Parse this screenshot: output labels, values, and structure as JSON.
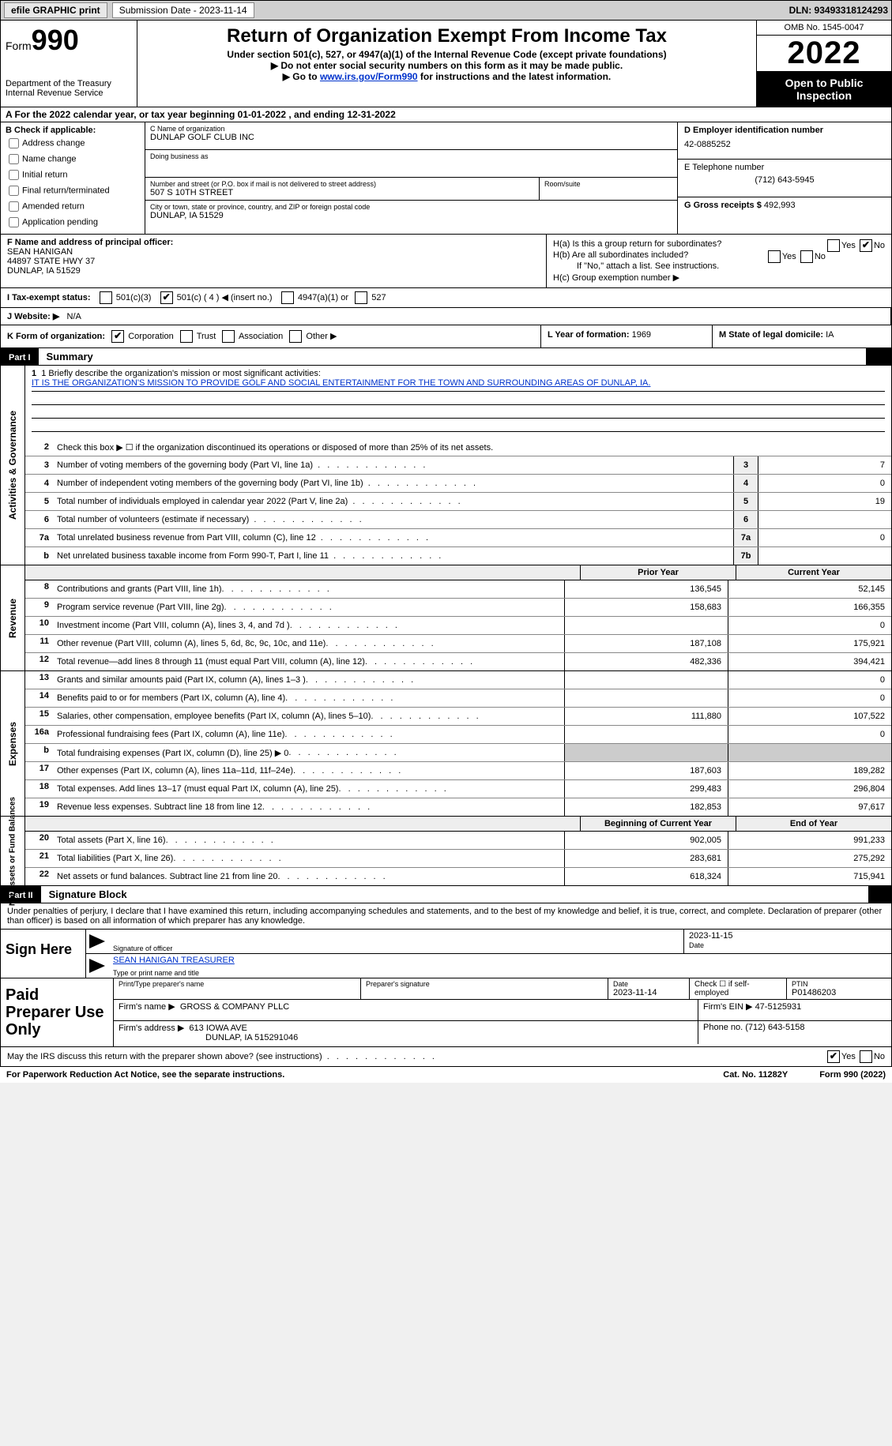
{
  "topbar": {
    "efile_btn": "efile GRAPHIC print",
    "sub_label": "Submission Date - 2023-11-14",
    "dln": "DLN: 93493318124293"
  },
  "header": {
    "form_word": "Form",
    "form_num": "990",
    "dept1": "Department of the Treasury",
    "dept2": "Internal Revenue Service",
    "title": "Return of Organization Exempt From Income Tax",
    "sub1": "Under section 501(c), 527, or 4947(a)(1) of the Internal Revenue Code (except private foundations)",
    "sub2": "▶ Do not enter social security numbers on this form as it may be made public.",
    "sub3_pre": "▶ Go to ",
    "sub3_link": "www.irs.gov/Form990",
    "sub3_post": " for instructions and the latest information.",
    "omb": "OMB No. 1545-0047",
    "year": "2022",
    "open_pub": "Open to Public Inspection"
  },
  "row_a": "A For the 2022 calendar year, or tax year beginning 01-01-2022   , and ending 12-31-2022",
  "box_b": {
    "label": "B Check if applicable:",
    "opts": [
      "Address change",
      "Name change",
      "Initial return",
      "Final return/terminated",
      "Amended return",
      "Application pending"
    ]
  },
  "box_c": {
    "name_lbl": "C Name of organization",
    "name": "DUNLAP GOLF CLUB INC",
    "dba_lbl": "Doing business as",
    "dba": "",
    "addr_lbl": "Number and street (or P.O. box if mail is not delivered to street address)",
    "addr": "507 S 10TH STREET",
    "room_lbl": "Room/suite",
    "city_lbl": "City or town, state or province, country, and ZIP or foreign postal code",
    "city": "DUNLAP, IA  51529"
  },
  "box_d": {
    "lbl": "D Employer identification number",
    "val": "42-0885252"
  },
  "box_e": {
    "lbl": "E Telephone number",
    "val": "(712) 643-5945"
  },
  "box_g": {
    "lbl": "G Gross receipts $",
    "val": "492,993"
  },
  "box_f": {
    "lbl": "F Name and address of principal officer:",
    "l1": "SEAN HANIGAN",
    "l2": "44897 STATE HWY 37",
    "l3": "DUNLAP, IA  51529"
  },
  "box_h": {
    "ha": "H(a)  Is this a group return for subordinates?",
    "hb": "H(b)  Are all subordinates included?",
    "hb_note": "If \"No,\" attach a list. See instructions.",
    "hc": "H(c)  Group exemption number ▶"
  },
  "row_i": {
    "lbl": "I  Tax-exempt status:",
    "opts": [
      "501(c)(3)",
      "501(c) ( 4 ) ◀ (insert no.)",
      "4947(a)(1) or",
      "527"
    ]
  },
  "row_j": {
    "lbl": "J  Website: ▶",
    "val": "N/A"
  },
  "row_k": {
    "lbl": "K Form of organization:",
    "opts": [
      "Corporation",
      "Trust",
      "Association",
      "Other ▶"
    ]
  },
  "row_l": {
    "lbl": "L Year of formation:",
    "val": "1969"
  },
  "row_m": {
    "lbl": "M State of legal domicile:",
    "val": "IA"
  },
  "part1": {
    "num": "Part I",
    "title": "Summary"
  },
  "mission": {
    "q": "1   Briefly describe the organization's mission or most significant activities:",
    "text": "IT IS THE ORGANIZATION'S MISSION TO PROVIDE GOLF AND SOCIAL ENTERTAINMENT FOR THE TOWN AND SURROUNDING AREAS OF DUNLAP, IA."
  },
  "gov_lines": [
    {
      "n": "2",
      "t": "Check this box ▶ ☐ if the organization discontinued its operations or disposed of more than 25% of its net assets.",
      "box": "",
      "v": ""
    },
    {
      "n": "3",
      "t": "Number of voting members of the governing body (Part VI, line 1a)",
      "box": "3",
      "v": "7"
    },
    {
      "n": "4",
      "t": "Number of independent voting members of the governing body (Part VI, line 1b)",
      "box": "4",
      "v": "0"
    },
    {
      "n": "5",
      "t": "Total number of individuals employed in calendar year 2022 (Part V, line 2a)",
      "box": "5",
      "v": "19"
    },
    {
      "n": "6",
      "t": "Total number of volunteers (estimate if necessary)",
      "box": "6",
      "v": ""
    },
    {
      "n": "7a",
      "t": "Total unrelated business revenue from Part VIII, column (C), line 12",
      "box": "7a",
      "v": "0"
    },
    {
      "n": "b",
      "t": "Net unrelated business taxable income from Form 990-T, Part I, line 11",
      "box": "7b",
      "v": ""
    }
  ],
  "col_hdr": {
    "prior": "Prior Year",
    "current": "Current Year"
  },
  "rev_label": "Revenue",
  "rev_lines": [
    {
      "n": "8",
      "t": "Contributions and grants (Part VIII, line 1h)",
      "p": "136,545",
      "c": "52,145"
    },
    {
      "n": "9",
      "t": "Program service revenue (Part VIII, line 2g)",
      "p": "158,683",
      "c": "166,355"
    },
    {
      "n": "10",
      "t": "Investment income (Part VIII, column (A), lines 3, 4, and 7d )",
      "p": "",
      "c": "0"
    },
    {
      "n": "11",
      "t": "Other revenue (Part VIII, column (A), lines 5, 6d, 8c, 9c, 10c, and 11e)",
      "p": "187,108",
      "c": "175,921"
    },
    {
      "n": "12",
      "t": "Total revenue—add lines 8 through 11 (must equal Part VIII, column (A), line 12)",
      "p": "482,336",
      "c": "394,421"
    }
  ],
  "exp_label": "Expenses",
  "exp_lines": [
    {
      "n": "13",
      "t": "Grants and similar amounts paid (Part IX, column (A), lines 1–3 )",
      "p": "",
      "c": "0"
    },
    {
      "n": "14",
      "t": "Benefits paid to or for members (Part IX, column (A), line 4)",
      "p": "",
      "c": "0"
    },
    {
      "n": "15",
      "t": "Salaries, other compensation, employee benefits (Part IX, column (A), lines 5–10)",
      "p": "111,880",
      "c": "107,522"
    },
    {
      "n": "16a",
      "t": "Professional fundraising fees (Part IX, column (A), line 11e)",
      "p": "",
      "c": "0"
    },
    {
      "n": "b",
      "t": "Total fundraising expenses (Part IX, column (D), line 25) ▶ 0",
      "p": "GRAY",
      "c": "GRAY"
    },
    {
      "n": "17",
      "t": "Other expenses (Part IX, column (A), lines 11a–11d, 11f–24e)",
      "p": "187,603",
      "c": "189,282"
    },
    {
      "n": "18",
      "t": "Total expenses. Add lines 13–17 (must equal Part IX, column (A), line 25)",
      "p": "299,483",
      "c": "296,804"
    },
    {
      "n": "19",
      "t": "Revenue less expenses. Subtract line 18 from line 12",
      "p": "182,853",
      "c": "97,617"
    }
  ],
  "na_label": "Net Assets or Fund Balances",
  "na_hdr": {
    "begin": "Beginning of Current Year",
    "end": "End of Year"
  },
  "na_lines": [
    {
      "n": "20",
      "t": "Total assets (Part X, line 16)",
      "p": "902,005",
      "c": "991,233"
    },
    {
      "n": "21",
      "t": "Total liabilities (Part X, line 26)",
      "p": "283,681",
      "c": "275,292"
    },
    {
      "n": "22",
      "t": "Net assets or fund balances. Subtract line 21 from line 20",
      "p": "618,324",
      "c": "715,941"
    }
  ],
  "gov_label": "Activities & Governance",
  "part2": {
    "num": "Part II",
    "title": "Signature Block"
  },
  "penalties": "Under penalties of perjury, I declare that I have examined this return, including accompanying schedules and statements, and to the best of my knowledge and belief, it is true, correct, and complete. Declaration of preparer (other than officer) is based on all information of which preparer has any knowledge.",
  "sign": {
    "left": "Sign Here",
    "sig_lbl": "Signature of officer",
    "date": "2023-11-15",
    "date_lbl": "Date",
    "name": "SEAN HANIGAN  TREASURER",
    "name_lbl": "Type or print name and title"
  },
  "prep": {
    "left": "Paid Preparer Use Only",
    "r1": {
      "c1_lbl": "Print/Type preparer's name",
      "c1": "",
      "c2_lbl": "Preparer's signature",
      "c2": "",
      "c3_lbl": "Date",
      "c3": "2023-11-14",
      "c4_lbl": "Check ☐ if self-employed",
      "c5_lbl": "PTIN",
      "c5": "P01486203"
    },
    "r2": {
      "lbl": "Firm's name    ▶",
      "val": "GROSS & COMPANY PLLC",
      "ein_lbl": "Firm's EIN ▶",
      "ein": "47-5125931"
    },
    "r3": {
      "lbl": "Firm's address ▶",
      "l1": "613 IOWA AVE",
      "l2": "DUNLAP, IA  515291046",
      "ph_lbl": "Phone no.",
      "ph": "(712) 643-5158"
    }
  },
  "may_discuss": "May the IRS discuss this return with the preparer shown above? (see instructions)",
  "footer": {
    "pra": "For Paperwork Reduction Act Notice, see the separate instructions.",
    "cat": "Cat. No. 11282Y",
    "form": "Form 990 (2022)"
  },
  "yes": "Yes",
  "no": "No"
}
